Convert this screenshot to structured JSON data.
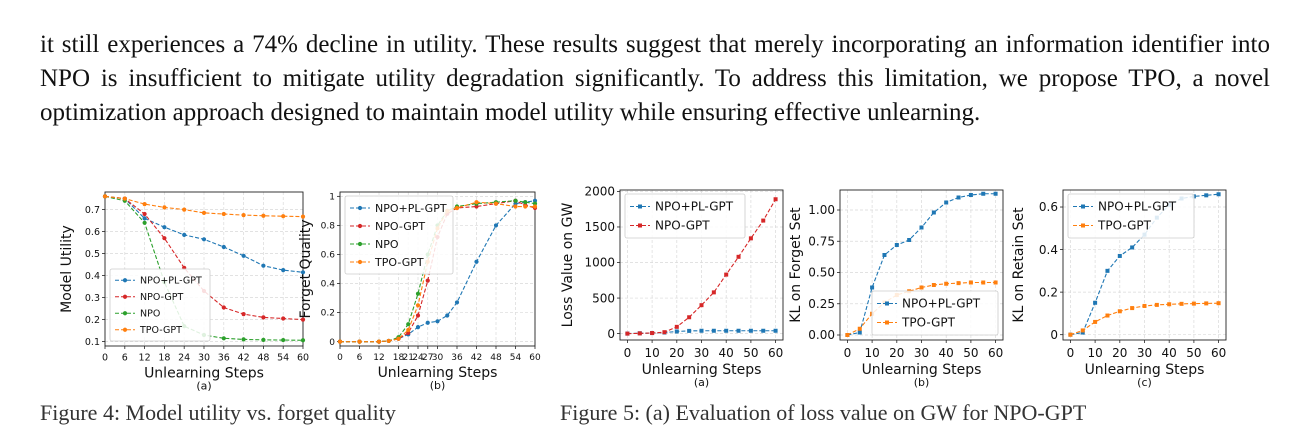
{
  "paragraph": "it still experiences a 74% decline in utility. These results suggest that merely incorporating an information identifier into NPO is insufficient to mitigate utility degradation significantly. To address this limitation, we propose TPO, a novel optimization approach designed to maintain model utility while ensuring effective unlearning.",
  "captions": {
    "fig4": "Figure 4: Model utility vs. forget quality",
    "fig5": "Figure 5: (a) Evaluation of loss value on GW for NPO-GPT"
  },
  "chart_data": [
    {
      "id": "fig4a",
      "type": "line",
      "xlabel": "Unlearning Steps",
      "ylabel": "Model Utility",
      "sublabel": "(a)",
      "xlim": [
        0,
        60
      ],
      "ylim": [
        0.08,
        0.78
      ],
      "xticks": [
        0,
        6,
        12,
        18,
        24,
        30,
        36,
        42,
        48,
        54,
        60
      ],
      "yticks": [
        0.1,
        0.2,
        0.3,
        0.4,
        0.5,
        0.6,
        0.7
      ],
      "legend": "bottom-left",
      "x": [
        0,
        6,
        12,
        18,
        24,
        30,
        36,
        42,
        48,
        54,
        60
      ],
      "series": [
        {
          "name": "NPO+PL-GPT",
          "color": "#1f77b4",
          "marker": "circle",
          "values": [
            0.76,
            0.75,
            0.66,
            0.62,
            0.585,
            0.565,
            0.53,
            0.49,
            0.445,
            0.425,
            0.415
          ]
        },
        {
          "name": "NPO-GPT",
          "color": "#d62728",
          "marker": "circle",
          "values": [
            0.76,
            0.75,
            0.68,
            0.57,
            0.435,
            0.33,
            0.255,
            0.225,
            0.21,
            0.205,
            0.2
          ]
        },
        {
          "name": "NPO",
          "color": "#2ca02c",
          "marker": "circle",
          "values": [
            0.76,
            0.74,
            0.64,
            0.37,
            0.17,
            0.13,
            0.115,
            0.11,
            0.108,
            0.107,
            0.106
          ]
        },
        {
          "name": "TPO-GPT",
          "color": "#ff7f0e",
          "marker": "circle",
          "values": [
            0.76,
            0.75,
            0.725,
            0.71,
            0.7,
            0.685,
            0.68,
            0.675,
            0.672,
            0.67,
            0.668
          ]
        }
      ]
    },
    {
      "id": "fig4b",
      "type": "line",
      "xlabel": "Unlearning Steps",
      "ylabel": "Forget Quality",
      "sublabel": "(b)",
      "xlim": [
        0,
        60
      ],
      "ylim": [
        -0.03,
        1.03
      ],
      "xticks": [
        0,
        6,
        12,
        18,
        21,
        24,
        27,
        30,
        36,
        42,
        48,
        54,
        60
      ],
      "xticklabels": [
        "0",
        "6",
        "12",
        "18",
        "21",
        "24",
        "27",
        "30",
        "36",
        "42",
        "48",
        "54",
        "60"
      ],
      "yticks": [
        0.0,
        0.2,
        0.4,
        0.6,
        0.8,
        1.0
      ],
      "legend": "top-left",
      "x": [
        0,
        6,
        12,
        15,
        18,
        21,
        24,
        27,
        30,
        33,
        36,
        42,
        48,
        54,
        57,
        60
      ],
      "series": [
        {
          "name": "NPO+PL-GPT",
          "color": "#1f77b4",
          "marker": "circle",
          "values": [
            0,
            0,
            0,
            0.005,
            0.02,
            0.05,
            0.1,
            0.13,
            0.14,
            0.18,
            0.27,
            0.55,
            0.8,
            0.95,
            0.96,
            0.97
          ]
        },
        {
          "name": "NPO-GPT",
          "color": "#d62728",
          "marker": "circle",
          "values": [
            0,
            0,
            0,
            0.005,
            0.02,
            0.06,
            0.18,
            0.42,
            0.72,
            0.88,
            0.92,
            0.93,
            0.95,
            0.97,
            0.94,
            0.92
          ]
        },
        {
          "name": "NPO",
          "color": "#2ca02c",
          "marker": "circle",
          "values": [
            0,
            0,
            0,
            0.005,
            0.03,
            0.12,
            0.33,
            0.6,
            0.8,
            0.9,
            0.93,
            0.95,
            0.96,
            0.97,
            0.96,
            0.95
          ]
        },
        {
          "name": "TPO-GPT",
          "color": "#ff7f0e",
          "marker": "circle",
          "values": [
            0,
            0,
            0,
            0.005,
            0.02,
            0.08,
            0.25,
            0.55,
            0.78,
            0.9,
            0.92,
            0.96,
            0.95,
            0.93,
            0.93,
            0.93
          ]
        }
      ]
    },
    {
      "id": "fig5a",
      "type": "line",
      "xlabel": "Unlearning Steps",
      "ylabel": "Loss Value on GW",
      "sublabel": "(a)",
      "xlim": [
        -3,
        63
      ],
      "ylim": [
        -90,
        2020
      ],
      "xticks": [
        0,
        10,
        20,
        30,
        40,
        50,
        60
      ],
      "yticks": [
        0,
        500,
        1000,
        1500,
        2000
      ],
      "legend": "top-left",
      "x": [
        0,
        5,
        10,
        15,
        20,
        25,
        30,
        35,
        40,
        45,
        50,
        55,
        60
      ],
      "series": [
        {
          "name": "NPO+PL-GPT",
          "color": "#1f77b4",
          "marker": "square",
          "values": [
            0,
            5,
            8,
            15,
            30,
            38,
            40,
            40,
            40,
            40,
            40,
            40,
            40
          ]
        },
        {
          "name": "NPO-GPT",
          "color": "#d62728",
          "marker": "square",
          "values": [
            0,
            3,
            8,
            20,
            95,
            230,
            400,
            580,
            830,
            1080,
            1340,
            1590,
            1890
          ]
        }
      ]
    },
    {
      "id": "fig5b",
      "type": "line",
      "xlabel": "Unlearning Steps",
      "ylabel": "KL on Forget Set",
      "sublabel": "(b)",
      "xlim": [
        -3,
        63
      ],
      "ylim": [
        -0.04,
        1.16
      ],
      "xticks": [
        0,
        10,
        20,
        30,
        40,
        50,
        60
      ],
      "yticks": [
        0.0,
        0.25,
        0.5,
        0.75,
        1.0
      ],
      "yticklabels": [
        "0.00",
        "0.25",
        "0.50",
        "0.75",
        "1.00"
      ],
      "legend": "bottom-right",
      "x": [
        0,
        5,
        10,
        15,
        20,
        25,
        30,
        35,
        40,
        45,
        50,
        55,
        60
      ],
      "series": [
        {
          "name": "NPO+PL-GPT",
          "color": "#1f77b4",
          "marker": "square",
          "values": [
            0,
            0.02,
            0.38,
            0.64,
            0.72,
            0.76,
            0.86,
            0.98,
            1.06,
            1.1,
            1.12,
            1.13,
            1.13
          ]
        },
        {
          "name": "TPO-GPT",
          "color": "#ff7f0e",
          "marker": "square",
          "values": [
            0,
            0.05,
            0.17,
            0.26,
            0.32,
            0.35,
            0.38,
            0.4,
            0.41,
            0.415,
            0.42,
            0.42,
            0.42
          ]
        }
      ]
    },
    {
      "id": "fig5c",
      "type": "line",
      "xlabel": "Unlearning Steps",
      "ylabel": "KL on Retain Set",
      "sublabel": "(c)",
      "xlim": [
        -3,
        63
      ],
      "ylim": [
        -0.025,
        0.68
      ],
      "xticks": [
        0,
        10,
        20,
        30,
        40,
        50,
        60
      ],
      "yticks": [
        0.0,
        0.2,
        0.4,
        0.6
      ],
      "legend": "top-left",
      "x": [
        0,
        5,
        10,
        15,
        20,
        25,
        30,
        35,
        40,
        45,
        50,
        55,
        60
      ],
      "series": [
        {
          "name": "NPO+PL-GPT",
          "color": "#1f77b4",
          "marker": "square",
          "values": [
            0,
            0.01,
            0.15,
            0.3,
            0.37,
            0.41,
            0.47,
            0.55,
            0.61,
            0.64,
            0.65,
            0.655,
            0.66
          ]
        },
        {
          "name": "TPO-GPT",
          "color": "#ff7f0e",
          "marker": "square",
          "values": [
            0,
            0.02,
            0.06,
            0.09,
            0.11,
            0.125,
            0.135,
            0.14,
            0.143,
            0.145,
            0.146,
            0.147,
            0.148
          ]
        }
      ]
    }
  ]
}
